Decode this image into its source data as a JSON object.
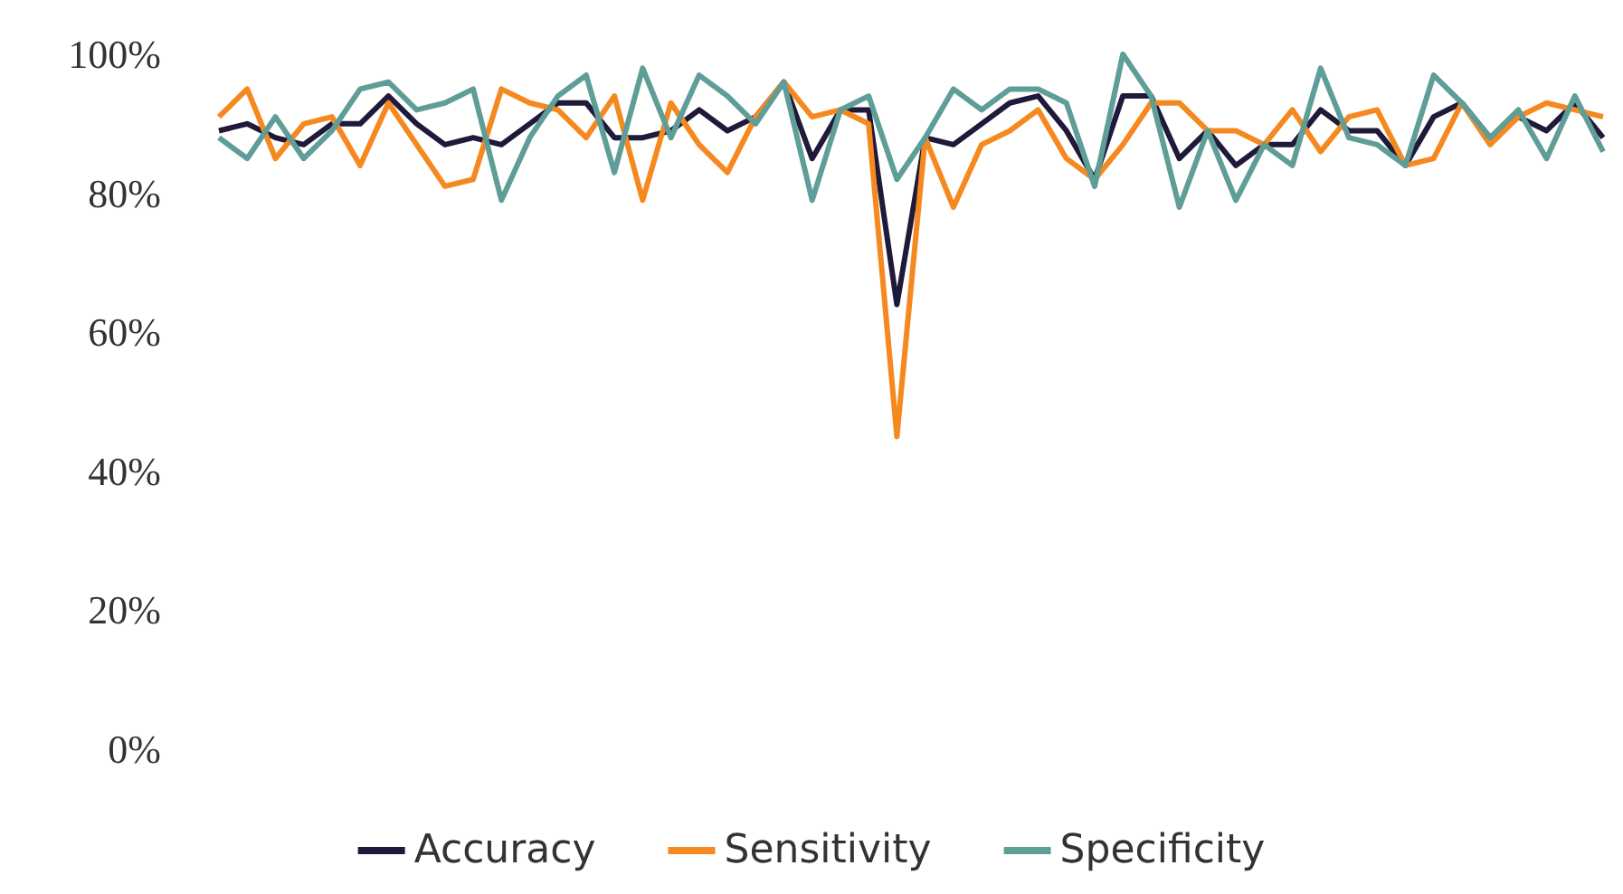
{
  "chart_data": {
    "type": "line",
    "categories": [
      null,
      null,
      null,
      null,
      null,
      null,
      null,
      null,
      null,
      null,
      null,
      null,
      null,
      null,
      null,
      null,
      null,
      null,
      null,
      null,
      null,
      null,
      null,
      null,
      null,
      null,
      null,
      null,
      null,
      null,
      null,
      null,
      null,
      null,
      null,
      null,
      null,
      null,
      null,
      null,
      null,
      null,
      null,
      null,
      null,
      null,
      null,
      null,
      null,
      null
    ],
    "series": [
      {
        "name": "Accuracy",
        "color": "#1f1a3a",
        "values": [
          89,
          90,
          88,
          87,
          90,
          90,
          94,
          90,
          87,
          88,
          87,
          90,
          93,
          93,
          88,
          88,
          89,
          92,
          89,
          91,
          96,
          85,
          92,
          92,
          64,
          88,
          87,
          90,
          93,
          94,
          89,
          82,
          94,
          94,
          85,
          89,
          84,
          87,
          87,
          92,
          89,
          89,
          84,
          91,
          93,
          88,
          91,
          89,
          93,
          88
        ]
      },
      {
        "name": "Sensitivity",
        "color": "#f5891f",
        "values": [
          91,
          95,
          85,
          90,
          91,
          84,
          93,
          87,
          81,
          82,
          95,
          93,
          92,
          88,
          94,
          79,
          93,
          87,
          83,
          91,
          96,
          91,
          92,
          90,
          45,
          88,
          78,
          87,
          89,
          92,
          85,
          82,
          87,
          93,
          93,
          89,
          89,
          87,
          92,
          86,
          91,
          92,
          84,
          85,
          93,
          87,
          91,
          93,
          92,
          91
        ]
      },
      {
        "name": "Specificity",
        "color": "#5f9e98",
        "values": [
          88,
          85,
          91,
          85,
          89,
          95,
          96,
          92,
          93,
          95,
          79,
          88,
          94,
          97,
          83,
          98,
          88,
          97,
          94,
          90,
          96,
          79,
          92,
          94,
          82,
          88,
          95,
          92,
          95,
          95,
          93,
          81,
          100,
          94,
          78,
          89,
          79,
          87,
          84,
          98,
          88,
          87,
          84,
          97,
          93,
          88,
          92,
          85,
          94,
          86
        ]
      }
    ],
    "ylim": [
      0,
      100
    ],
    "yticks": [
      {
        "value": 0,
        "label": "0%"
      },
      {
        "value": 20,
        "label": "20%"
      },
      {
        "value": 40,
        "label": "40%"
      },
      {
        "value": 60,
        "label": "60%"
      },
      {
        "value": 80,
        "label": "80%"
      },
      {
        "value": 100,
        "label": "100%"
      }
    ],
    "grid": false,
    "legend": "bottom",
    "marker": "none",
    "line_style": "solid"
  }
}
